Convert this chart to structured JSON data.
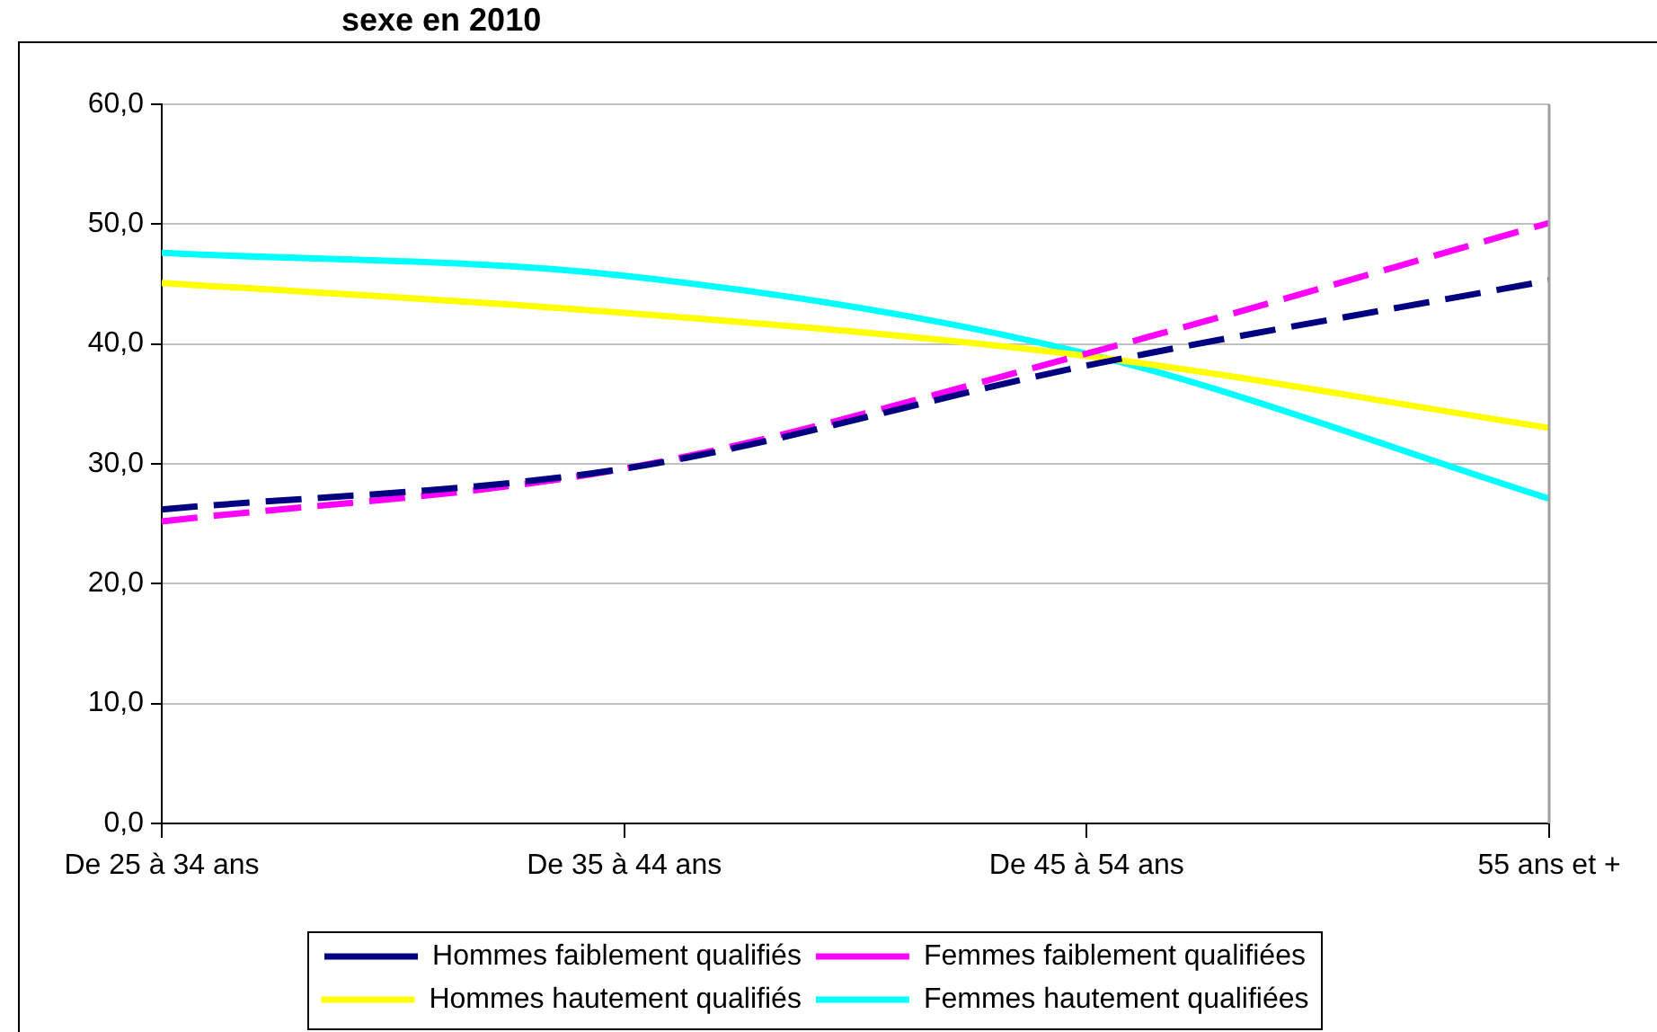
{
  "chart_data": {
    "type": "line",
    "title": "sexe en 2010",
    "categories": [
      "De 25 à 34 ans",
      "De 35 à 44 ans",
      "De 45 à 54 ans",
      "55 ans et +"
    ],
    "series": [
      {
        "name": "Hommes faiblement qualifiés",
        "color": "#000080",
        "line_style": "dashed",
        "values": [
          26.2,
          29.6,
          38.2,
          45.3
        ]
      },
      {
        "name": "Femmes faiblement qualifiées",
        "color": "#ff00ff",
        "line_style": "dashed",
        "values": [
          25.2,
          29.6,
          39.2,
          50.1
        ]
      },
      {
        "name": "Hommes hautement qualifiés",
        "color": "#ffff00",
        "line_style": "solid",
        "values": [
          45.1,
          42.6,
          39.0,
          33.0
        ]
      },
      {
        "name": "Femmes hautement qualifiées",
        "color": "#00ffff",
        "line_style": "solid",
        "values": [
          47.6,
          45.7,
          39.2,
          27.1
        ]
      }
    ],
    "ylim": [
      0,
      60
    ],
    "yticks": [
      {
        "value": 0,
        "label": "0,0"
      },
      {
        "value": 10,
        "label": "10,0"
      },
      {
        "value": 20,
        "label": "20,0"
      },
      {
        "value": 30,
        "label": "30,0"
      },
      {
        "value": 40,
        "label": "40,0"
      },
      {
        "value": 50,
        "label": "50,0"
      },
      {
        "value": 60,
        "label": "60,0"
      }
    ],
    "grid": "y",
    "legend": "bottom",
    "marker": "none"
  }
}
